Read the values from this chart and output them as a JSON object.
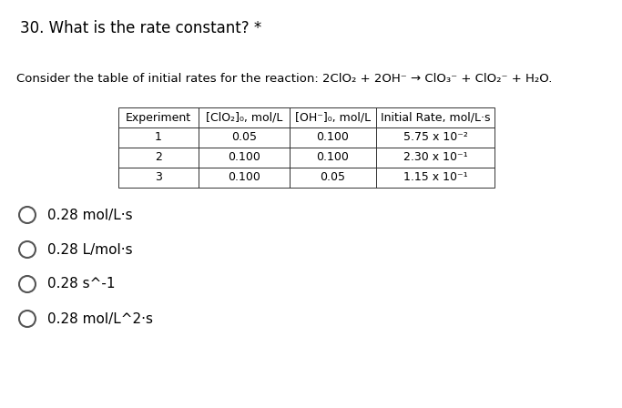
{
  "title": "30. What is the rate constant? *",
  "subtitle": "Consider the table of initial rates for the reaction: 2ClO₂ + 2OH⁻ → ClO₃⁻ + ClO₂⁻ + H₂O.",
  "table_headers": [
    "Experiment",
    "[ClO₂]₀, mol/L",
    "[OH⁻]₀, mol/L",
    "Initial Rate, mol/L·s"
  ],
  "table_data": [
    [
      "1",
      "0.05",
      "0.100",
      "5.75 x 10⁻²"
    ],
    [
      "2",
      "0.100",
      "0.100",
      "2.30 x 10⁻¹"
    ],
    [
      "3",
      "0.100",
      "0.05",
      "1.15 x 10⁻¹"
    ]
  ],
  "options": [
    "0.28 mol/L·s",
    "0.28 L/mol·s",
    "0.28 s^-1",
    "0.28 mol/L^2·s"
  ],
  "bg_color": "#ffffff",
  "text_color": "#000000",
  "title_fontsize": 12,
  "subtitle_fontsize": 9.5,
  "option_fontsize": 11,
  "table_fontsize": 9
}
